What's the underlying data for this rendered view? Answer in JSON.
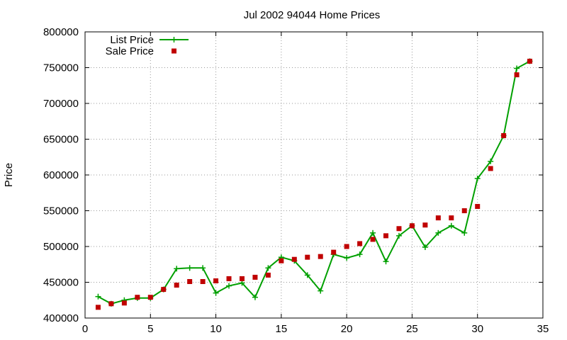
{
  "chart_data": {
    "type": "line",
    "title": "Jul 2002 94044 Home Prices",
    "xlabel": "",
    "ylabel": "Price",
    "xlim": [
      0,
      35
    ],
    "ylim": [
      400000,
      800000
    ],
    "xticks": [
      0,
      5,
      10,
      15,
      20,
      25,
      30,
      35
    ],
    "yticks": [
      400000,
      450000,
      500000,
      550000,
      600000,
      650000,
      700000,
      750000,
      800000
    ],
    "xtick_labels": [
      "0",
      "5",
      "10",
      "15",
      "20",
      "25",
      "30",
      "35"
    ],
    "ytick_labels": [
      "400000",
      "450000",
      "500000",
      "550000",
      "600000",
      "650000",
      "700000",
      "750000",
      "800000"
    ],
    "grid": true,
    "legend_position": "top-left",
    "series": [
      {
        "name": "List Price",
        "style": "linespoints",
        "marker": "plus",
        "color": "#00a000",
        "x": [
          1,
          2,
          3,
          4,
          5,
          6,
          7,
          8,
          9,
          10,
          11,
          12,
          13,
          14,
          15,
          16,
          17,
          18,
          19,
          20,
          21,
          22,
          23,
          24,
          25,
          26,
          27,
          28,
          29,
          30,
          31,
          32,
          33,
          34
        ],
        "y": [
          430000,
          420000,
          425000,
          428000,
          428000,
          440000,
          469000,
          470000,
          470000,
          435000,
          445000,
          449000,
          429000,
          470000,
          485000,
          480000,
          460000,
          438000,
          489000,
          484000,
          489000,
          519000,
          479000,
          515000,
          529000,
          499000,
          519000,
          529000,
          519000,
          595000,
          619000,
          655000,
          749000,
          759000
        ]
      },
      {
        "name": "Sale Price",
        "style": "points",
        "marker": "square",
        "color": "#c00000",
        "x": [
          1,
          2,
          3,
          4,
          5,
          6,
          7,
          8,
          9,
          10,
          11,
          12,
          13,
          14,
          15,
          16,
          17,
          18,
          19,
          20,
          21,
          22,
          23,
          24,
          25,
          26,
          27,
          28,
          29,
          30,
          31,
          32,
          33,
          34
        ],
        "y": [
          415000,
          420000,
          421000,
          429000,
          429000,
          440000,
          446000,
          451000,
          451000,
          452000,
          455000,
          455000,
          457000,
          460000,
          480000,
          482000,
          485000,
          486000,
          492000,
          500000,
          504000,
          510000,
          515000,
          525000,
          529000,
          530000,
          540000,
          540000,
          550000,
          556000,
          609000,
          655000,
          740000,
          759000
        ]
      }
    ]
  },
  "colors": {
    "background": "#ffffff",
    "axis": "#000000",
    "grid": "#999999"
  }
}
